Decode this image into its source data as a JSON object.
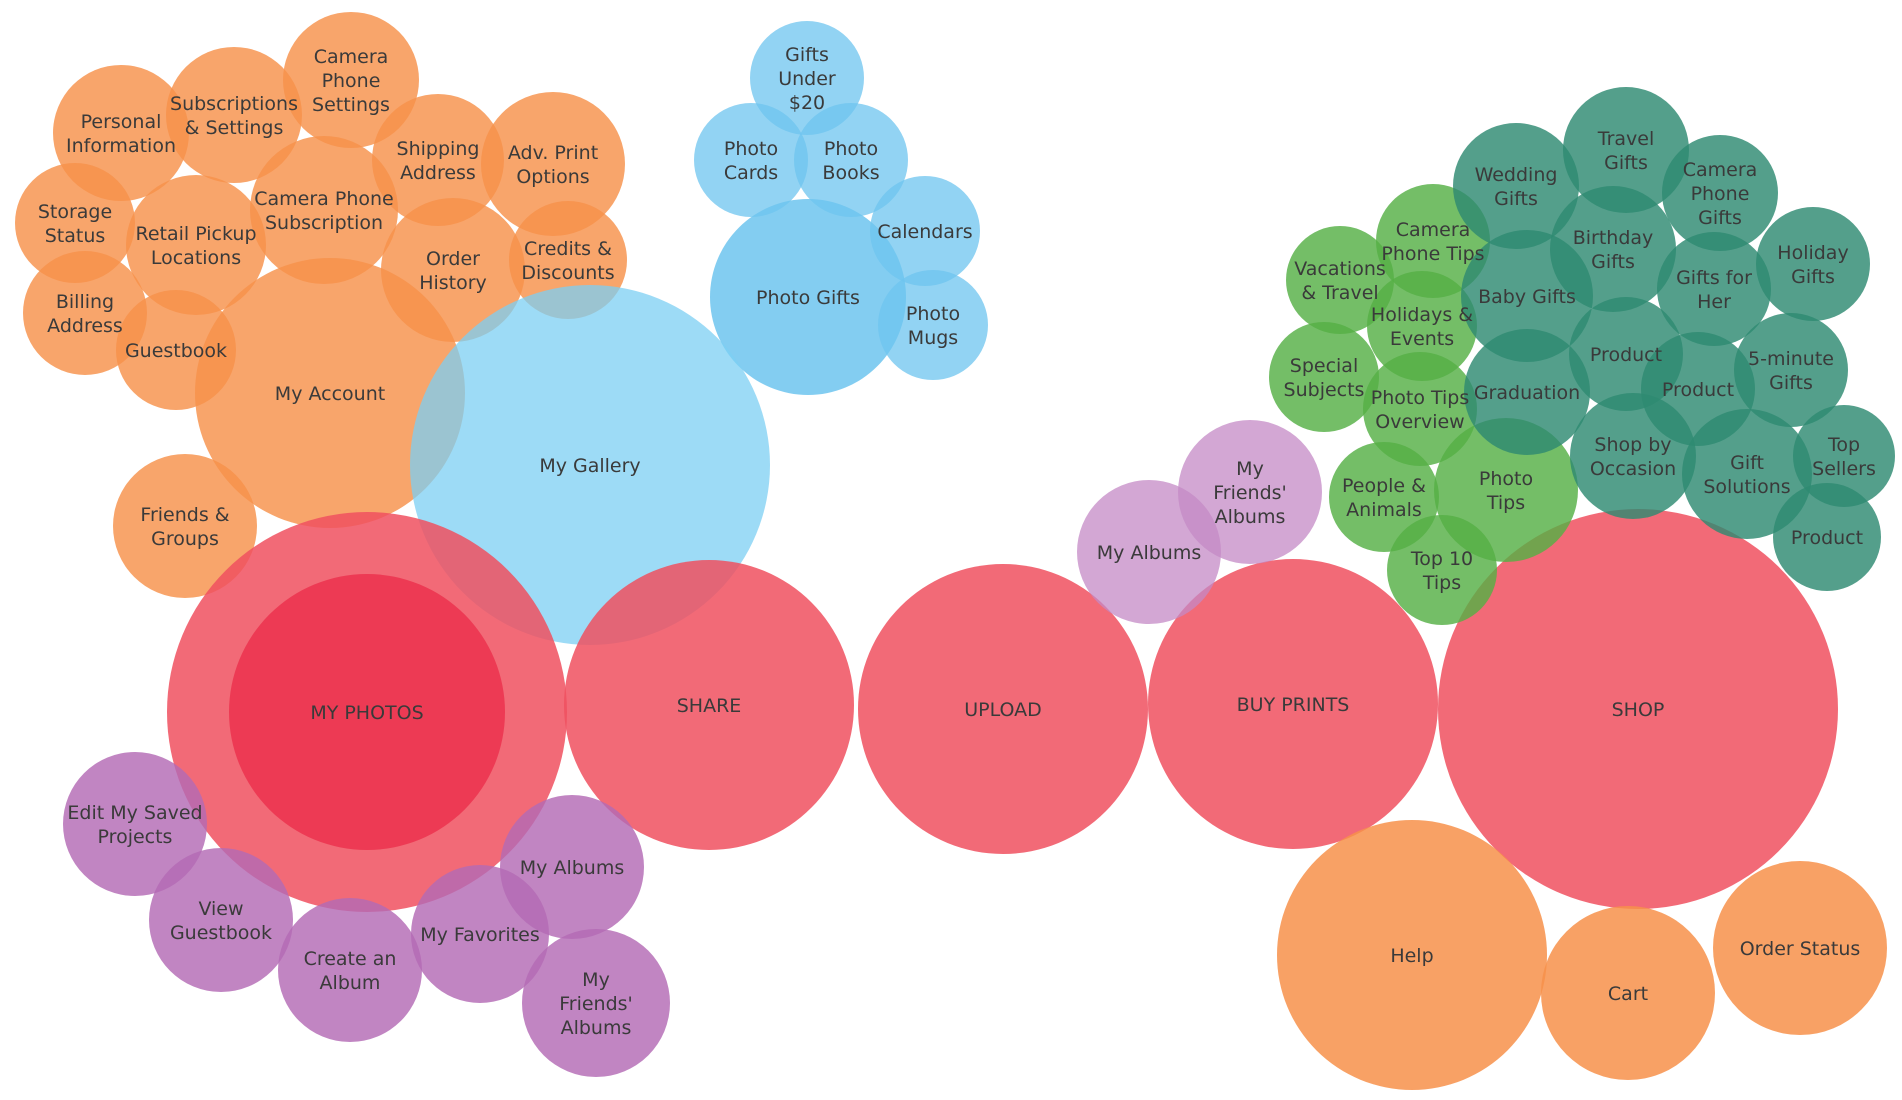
{
  "colors": {
    "main": "#f0505f",
    "main_core": "#ec3550",
    "account": "#f7914a",
    "gallery": "#7ccff3",
    "gifts": "#6dc4ef",
    "albums": "#b36ab5",
    "my_albums_prints": "#c48ac6",
    "tips": "#56b045",
    "shop": "#2e8a72",
    "bottom": "#f7914a"
  },
  "nodes": [
    {
      "id": "account-personal-information",
      "label": "Personal\nInformation",
      "group": "account"
    },
    {
      "id": "account-subscriptions-settings",
      "label": "Subscriptions\n& Settings",
      "group": "account"
    },
    {
      "id": "account-camera-phone-settings",
      "label": "Camera\nPhone\nSettings",
      "group": "account"
    },
    {
      "id": "account-shipping-address",
      "label": "Shipping\nAddress",
      "group": "account"
    },
    {
      "id": "account-adv-print-options",
      "label": "Adv. Print\nOptions",
      "group": "account"
    },
    {
      "id": "account-storage-status",
      "label": "Storage\nStatus",
      "group": "account"
    },
    {
      "id": "account-retail-pickup",
      "label": "Retail Pickup\nLocations",
      "group": "account"
    },
    {
      "id": "account-camera-phone-subscription",
      "label": "Camera Phone\nSubscription",
      "group": "account"
    },
    {
      "id": "account-order-history",
      "label": "Order\nHistory",
      "group": "account"
    },
    {
      "id": "account-credits-discounts",
      "label": "Credits &\nDiscounts",
      "group": "account"
    },
    {
      "id": "account-billing-address",
      "label": "Billing\nAddress",
      "group": "account"
    },
    {
      "id": "account-guestbook",
      "label": "Guestbook",
      "group": "account"
    },
    {
      "id": "account-my-account",
      "label": "My Account",
      "group": "account"
    },
    {
      "id": "account-friends-groups",
      "label": "Friends &\nGroups",
      "group": "account"
    },
    {
      "id": "gifts-under-20",
      "label": "Gifts\nUnder\n$20",
      "group": "gifts"
    },
    {
      "id": "gifts-photo-cards",
      "label": "Photo\nCards",
      "group": "gifts"
    },
    {
      "id": "gifts-photo-books",
      "label": "Photo\nBooks",
      "group": "gifts"
    },
    {
      "id": "gifts-calendars",
      "label": "Calendars",
      "group": "gifts"
    },
    {
      "id": "gifts-photo-gifts",
      "label": "Photo Gifts",
      "group": "gifts"
    },
    {
      "id": "gifts-photo-mugs",
      "label": "Photo\nMugs",
      "group": "gifts"
    },
    {
      "id": "gallery-my-gallery",
      "label": "My Gallery",
      "group": "gallery"
    },
    {
      "id": "main-my-photos",
      "label": "MY PHOTOS",
      "group": "main"
    },
    {
      "id": "main-my-photos-core",
      "label": "",
      "group": "main_core"
    },
    {
      "id": "main-share",
      "label": "SHARE",
      "group": "main"
    },
    {
      "id": "main-upload",
      "label": "UPLOAD",
      "group": "main"
    },
    {
      "id": "main-buy-prints",
      "label": "BUY PRINTS",
      "group": "main"
    },
    {
      "id": "main-shop",
      "label": "SHOP",
      "group": "main"
    },
    {
      "id": "albums-edit-saved-projects",
      "label": "Edit My Saved\nProjects",
      "group": "albums"
    },
    {
      "id": "albums-view-guestbook",
      "label": "View\nGuestbook",
      "group": "albums"
    },
    {
      "id": "albums-create-album",
      "label": "Create an\nAlbum",
      "group": "albums"
    },
    {
      "id": "albums-my-favorites",
      "label": "My Favorites",
      "group": "albums"
    },
    {
      "id": "albums-my-albums",
      "label": "My Albums",
      "group": "albums"
    },
    {
      "id": "albums-my-friends-albums",
      "label": "My\nFriends'\nAlbums",
      "group": "albums"
    },
    {
      "id": "prints-my-albums",
      "label": "My Albums",
      "group": "my_albums_prints"
    },
    {
      "id": "prints-my-friends-albums",
      "label": "My\nFriends'\nAlbums",
      "group": "my_albums_prints"
    },
    {
      "id": "tips-vacations-travel",
      "label": "Vacations\n& Travel",
      "group": "tips"
    },
    {
      "id": "tips-camera-phone-tips",
      "label": "Camera\nPhone Tips",
      "group": "tips"
    },
    {
      "id": "tips-holidays-events",
      "label": "Holidays &\nEvents",
      "group": "tips"
    },
    {
      "id": "tips-special-subjects",
      "label": "Special\nSubjects",
      "group": "tips"
    },
    {
      "id": "tips-photo-tips-overview",
      "label": "Photo Tips\nOverview",
      "group": "tips"
    },
    {
      "id": "tips-people-animals",
      "label": "People &\nAnimals",
      "group": "tips"
    },
    {
      "id": "tips-photo-tips",
      "label": "Photo\nTips",
      "group": "tips"
    },
    {
      "id": "tips-top-10-tips",
      "label": "Top 10\nTips",
      "group": "tips"
    },
    {
      "id": "shop-wedding-gifts",
      "label": "Wedding\nGifts",
      "group": "shop"
    },
    {
      "id": "shop-travel-gifts",
      "label": "Travel\nGifts",
      "group": "shop"
    },
    {
      "id": "shop-camera-phone-gifts",
      "label": "Camera\nPhone\nGifts",
      "group": "shop"
    },
    {
      "id": "shop-birthday-gifts",
      "label": "Birthday\nGifts",
      "group": "shop"
    },
    {
      "id": "shop-holiday-gifts",
      "label": "Holiday\nGifts",
      "group": "shop"
    },
    {
      "id": "shop-baby-gifts",
      "label": "Baby Gifts",
      "group": "shop"
    },
    {
      "id": "shop-gifts-for-her",
      "label": "Gifts for\nHer",
      "group": "shop"
    },
    {
      "id": "shop-product-1",
      "label": "Product",
      "group": "shop"
    },
    {
      "id": "shop-graduation",
      "label": "Graduation",
      "group": "shop"
    },
    {
      "id": "shop-product-2",
      "label": "Product",
      "group": "shop"
    },
    {
      "id": "shop-5-minute-gifts",
      "label": "5-minute\nGifts",
      "group": "shop"
    },
    {
      "id": "shop-by-occasion",
      "label": "Shop by\nOccasion",
      "group": "shop"
    },
    {
      "id": "shop-gift-solutions",
      "label": "Gift\nSolutions",
      "group": "shop"
    },
    {
      "id": "shop-top-sellers",
      "label": "Top\nSellers",
      "group": "shop"
    },
    {
      "id": "shop-product-3",
      "label": "Product",
      "group": "shop"
    },
    {
      "id": "bottom-help",
      "label": "Help",
      "group": "bottom"
    },
    {
      "id": "bottom-cart",
      "label": "Cart",
      "group": "bottom"
    },
    {
      "id": "bottom-order-status",
      "label": "Order Status",
      "group": "bottom"
    }
  ]
}
